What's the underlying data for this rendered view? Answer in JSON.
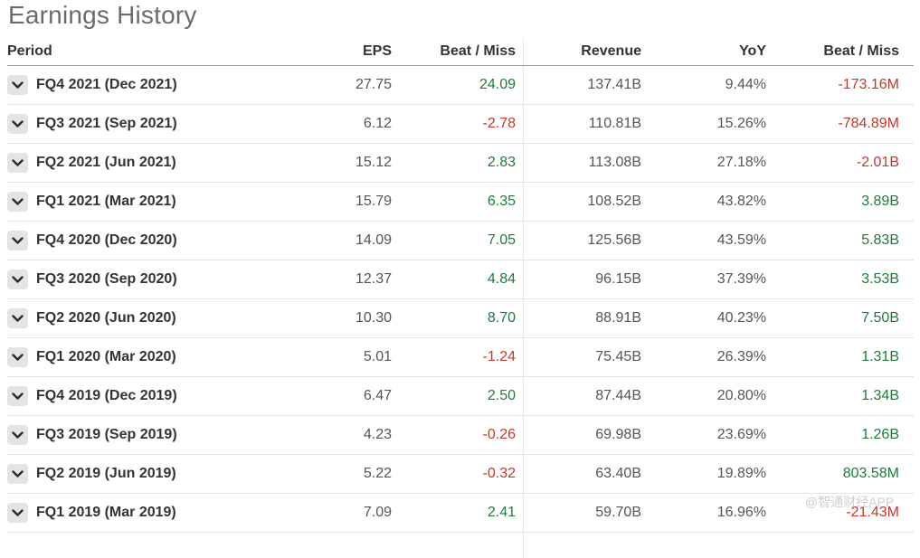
{
  "title": "Earnings History",
  "headers": {
    "period": "Period",
    "eps": "EPS",
    "eps_beat_miss": "Beat / Miss",
    "revenue": "Revenue",
    "yoy": "YoY",
    "revenue_beat_miss": "Beat / Miss"
  },
  "colors": {
    "positive": "#1f7a3a",
    "negative": "#c0392b"
  },
  "rows": [
    {
      "period": "FQ4 2021 (Dec 2021)",
      "eps": "27.75",
      "eps_beat": "24.09",
      "eps_beat_sign": "pos",
      "revenue": "137.41B",
      "yoy": "9.44%",
      "rev_beat": "-173.16M",
      "rev_beat_sign": "neg"
    },
    {
      "period": "FQ3 2021 (Sep 2021)",
      "eps": "6.12",
      "eps_beat": "-2.78",
      "eps_beat_sign": "neg",
      "revenue": "110.81B",
      "yoy": "15.26%",
      "rev_beat": "-784.89M",
      "rev_beat_sign": "neg"
    },
    {
      "period": "FQ2 2021 (Jun 2021)",
      "eps": "15.12",
      "eps_beat": "2.83",
      "eps_beat_sign": "pos",
      "revenue": "113.08B",
      "yoy": "27.18%",
      "rev_beat": "-2.01B",
      "rev_beat_sign": "neg"
    },
    {
      "period": "FQ1 2021 (Mar 2021)",
      "eps": "15.79",
      "eps_beat": "6.35",
      "eps_beat_sign": "pos",
      "revenue": "108.52B",
      "yoy": "43.82%",
      "rev_beat": "3.89B",
      "rev_beat_sign": "pos"
    },
    {
      "period": "FQ4 2020 (Dec 2020)",
      "eps": "14.09",
      "eps_beat": "7.05",
      "eps_beat_sign": "pos",
      "revenue": "125.56B",
      "yoy": "43.59%",
      "rev_beat": "5.83B",
      "rev_beat_sign": "pos"
    },
    {
      "period": "FQ3 2020 (Sep 2020)",
      "eps": "12.37",
      "eps_beat": "4.84",
      "eps_beat_sign": "pos",
      "revenue": "96.15B",
      "yoy": "37.39%",
      "rev_beat": "3.53B",
      "rev_beat_sign": "pos"
    },
    {
      "period": "FQ2 2020 (Jun 2020)",
      "eps": "10.30",
      "eps_beat": "8.70",
      "eps_beat_sign": "pos",
      "revenue": "88.91B",
      "yoy": "40.23%",
      "rev_beat": "7.50B",
      "rev_beat_sign": "pos"
    },
    {
      "period": "FQ1 2020 (Mar 2020)",
      "eps": "5.01",
      "eps_beat": "-1.24",
      "eps_beat_sign": "neg",
      "revenue": "75.45B",
      "yoy": "26.39%",
      "rev_beat": "1.31B",
      "rev_beat_sign": "pos"
    },
    {
      "period": "FQ4 2019 (Dec 2019)",
      "eps": "6.47",
      "eps_beat": "2.50",
      "eps_beat_sign": "pos",
      "revenue": "87.44B",
      "yoy": "20.80%",
      "rev_beat": "1.34B",
      "rev_beat_sign": "pos"
    },
    {
      "period": "FQ3 2019 (Sep 2019)",
      "eps": "4.23",
      "eps_beat": "-0.26",
      "eps_beat_sign": "neg",
      "revenue": "69.98B",
      "yoy": "23.69%",
      "rev_beat": "1.26B",
      "rev_beat_sign": "pos"
    },
    {
      "period": "FQ2 2019 (Jun 2019)",
      "eps": "5.22",
      "eps_beat": "-0.32",
      "eps_beat_sign": "neg",
      "revenue": "63.40B",
      "yoy": "19.89%",
      "rev_beat": "803.58M",
      "rev_beat_sign": "pos"
    },
    {
      "period": "FQ1 2019 (Mar 2019)",
      "eps": "7.09",
      "eps_beat": "2.41",
      "eps_beat_sign": "pos",
      "revenue": "59.70B",
      "yoy": "16.96%",
      "rev_beat": "-21.43M",
      "rev_beat_sign": "neg"
    }
  ],
  "watermark": "@智通财经APP",
  "icons": {
    "row_toggle": "chevron-down-icon"
  }
}
